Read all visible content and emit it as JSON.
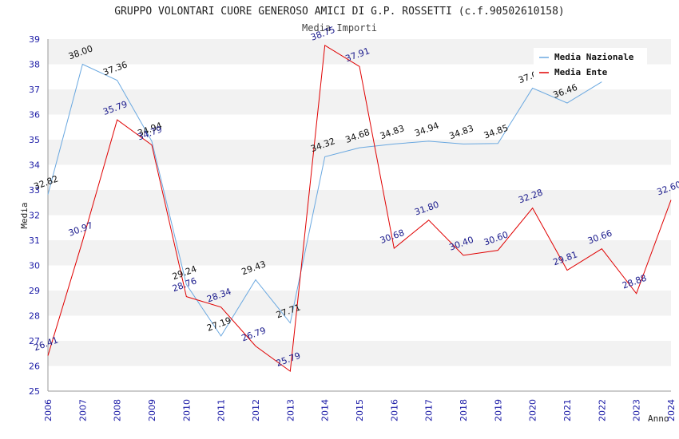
{
  "chart_data": {
    "type": "line",
    "title": "GRUPPO VOLONTARI CUORE GENEROSO AMICI DI G.P. ROSSETTI (c.f.90502610158)",
    "subtitle": "Media Importi",
    "xlabel": "Anno",
    "ylabel": "Media",
    "ylim": [
      25,
      39
    ],
    "yticks": [
      "25",
      "26",
      "27",
      "28",
      "29",
      "30",
      "31",
      "32",
      "33",
      "34",
      "35",
      "36",
      "37",
      "38",
      "39"
    ],
    "categories": [
      "2006",
      "2007",
      "2008",
      "2009",
      "2010",
      "2011",
      "2012",
      "2013",
      "2014",
      "2015",
      "2016",
      "2017",
      "2018",
      "2019",
      "2020",
      "2021",
      "2022",
      "2023",
      "2024"
    ],
    "grid": "horizontal bands",
    "legend_position": "top-right",
    "series": [
      {
        "name": "Media Nazionale",
        "color": "#6aa8e0",
        "values": [
          32.82,
          38.0,
          37.36,
          34.94,
          29.24,
          27.19,
          29.43,
          27.71,
          34.32,
          34.68,
          34.83,
          34.94,
          34.83,
          34.85,
          37.05,
          36.46,
          37.3,
          null,
          null
        ],
        "labels": [
          "32.82",
          "38.00",
          "37.36",
          "34.94",
          "29.24",
          "27.19",
          "29.43",
          "27.71",
          "34.32",
          "34.68",
          "34.83",
          "34.94",
          "34.83",
          "34.85",
          "37.0",
          "36.46",
          "",
          "",
          ""
        ]
      },
      {
        "name": "Media Ente",
        "color": "#e00000",
        "values": [
          26.41,
          30.97,
          35.79,
          34.79,
          28.76,
          28.34,
          26.79,
          25.79,
          38.75,
          37.91,
          30.68,
          31.8,
          30.4,
          30.6,
          32.28,
          29.81,
          30.66,
          28.88,
          32.6
        ],
        "labels": [
          "26.41",
          "30.97",
          "35.79",
          "34.79",
          "28.76",
          "28.34",
          "26.79",
          "25.79",
          "38.75",
          "37.91",
          "30.68",
          "31.80",
          "30.40",
          "30.60",
          "32.28",
          "29.81",
          "30.66",
          "28.88",
          "32.60"
        ]
      }
    ]
  }
}
